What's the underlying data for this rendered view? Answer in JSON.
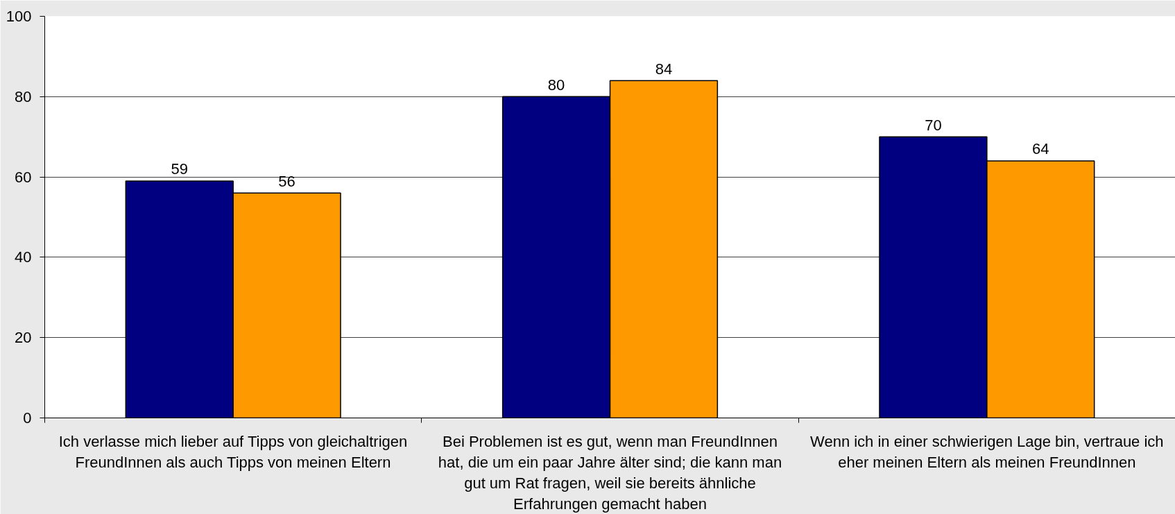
{
  "chart_data": {
    "type": "bar",
    "categories": [
      "Ich verlasse mich lieber auf Tipps von gleichaltrigen FreundInnen als auch Tipps von meinen Eltern",
      "Bei Problemen ist es gut, wenn man FreundInnen hat, die um ein paar Jahre älter sind; die kann man gut um Rat fragen, weil sie bereits ähnliche Erfahrungen gemacht haben",
      "Wenn ich in einer schwierigen Lage bin, vertraue ich eher meinen Eltern als meinen FreundInnen"
    ],
    "series": [
      {
        "color": "#000080",
        "values": [
          59,
          80,
          70
        ]
      },
      {
        "color": "#ff9900",
        "values": [
          56,
          84,
          64
        ]
      }
    ],
    "ylim": [
      0,
      100
    ],
    "yticks": [
      0,
      20,
      40,
      60,
      80,
      100
    ],
    "grid": "y",
    "data_labels": true
  }
}
